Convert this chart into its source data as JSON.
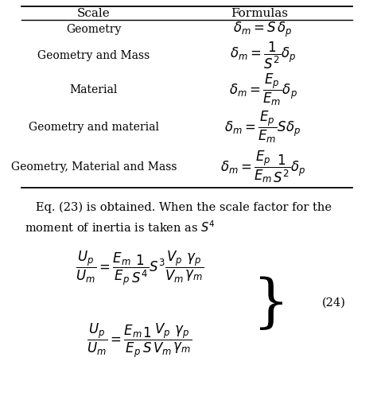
{
  "bg_color": "#ffffff",
  "text_color": "#000000",
  "table_header": [
    "Scale",
    "Formulas"
  ],
  "table_rows": [
    [
      "Geometry",
      "$\\delta_m = S\\,\\delta_p$"
    ],
    [
      "Geometry and Mass",
      "$\\delta_m = \\dfrac{1}{S^2}\\delta_p$"
    ],
    [
      "Material",
      "$\\delta_m = \\dfrac{E_p}{E_m}\\delta_p$"
    ],
    [
      "Geometry and material",
      "$\\delta_m = \\dfrac{E_p}{E_m}S\\delta_p$"
    ],
    [
      "Geometry, Material and Mass",
      "$\\delta_m = \\dfrac{E_p}{E_m}\\dfrac{1}{S^2}\\delta_p$"
    ]
  ],
  "para_line1": "   Eq. (23) is obtained. When the scale factor for the",
  "para_line2": "moment of inertia is taken as $S^4$",
  "eq_line1": "$\\dfrac{U_p}{U_m} = \\dfrac{E_m}{E_p}\\dfrac{1}{S^4}S^3\\dfrac{V_p}{V_m}\\dfrac{\\gamma_p}{\\gamma_m}$",
  "eq_line2": "$\\dfrac{U_p}{U_m} = \\dfrac{E_m}{E_p}\\dfrac{1}{S}\\dfrac{V_p}{V_m}\\dfrac{\\gamma_p}{\\gamma_m}$",
  "eq_number": "(24)",
  "figsize": [
    4.74,
    5.08
  ],
  "dpi": 100
}
